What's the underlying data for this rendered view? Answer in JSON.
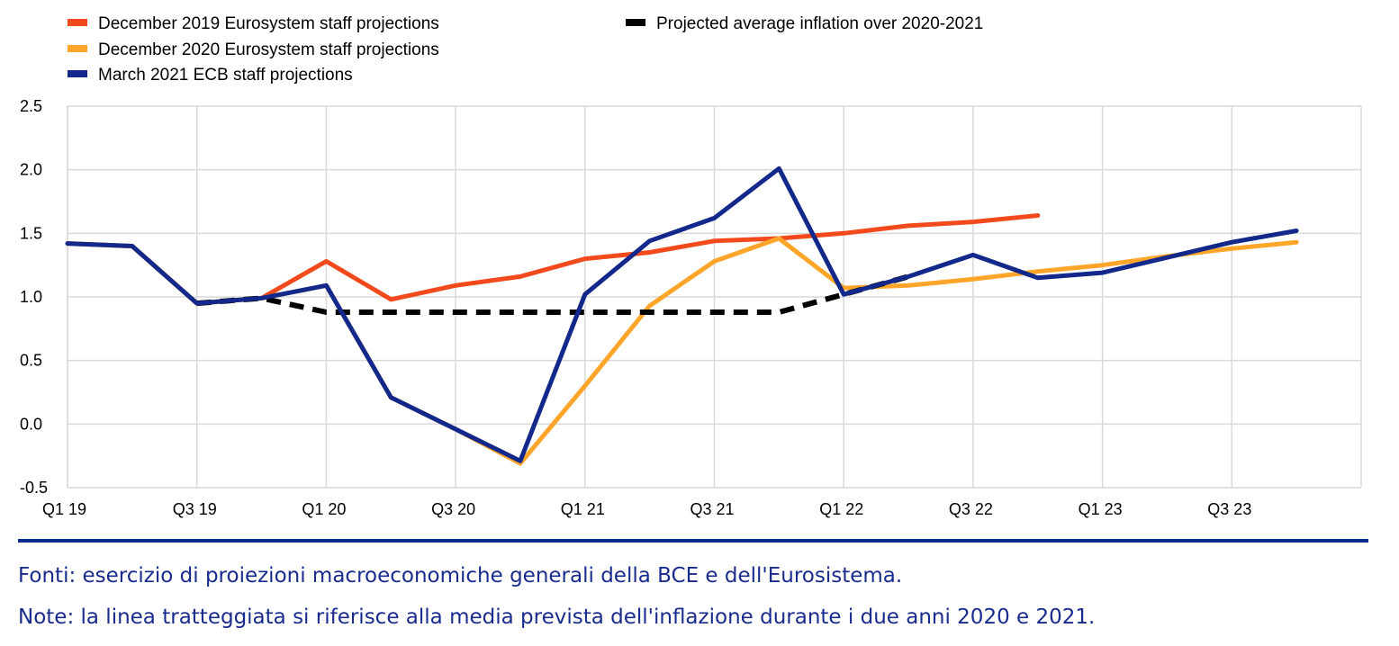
{
  "chart_data": {
    "type": "line",
    "title": "",
    "xlabel": "",
    "ylabel": "",
    "x": [
      "Q1 19",
      "Q2 19",
      "Q3 19",
      "Q4 19",
      "Q1 20",
      "Q2 20",
      "Q3 20",
      "Q4 20",
      "Q1 21",
      "Q2 21",
      "Q3 21",
      "Q4 21",
      "Q1 22",
      "Q2 22",
      "Q3 22",
      "Q4 22",
      "Q1 23",
      "Q2 23",
      "Q3 23",
      "Q4 23",
      "Q1 24"
    ],
    "x_tick_labels": [
      "Q1 19",
      "Q3 19",
      "Q1 20",
      "Q3 20",
      "Q1 21",
      "Q3 21",
      "Q1 22",
      "Q3 22",
      "Q1 23",
      "Q3 23"
    ],
    "ylim": [
      -0.5,
      2.5
    ],
    "y_ticks": [
      "-0.5",
      "0.0",
      "0.5",
      "1.0",
      "1.5",
      "2.0",
      "2.5"
    ],
    "grid": true,
    "legend_placement": "top",
    "series": [
      {
        "name": "December 2019 Eurosystem staff projections",
        "color": "#f24a1c",
        "dash": false,
        "values": [
          1.42,
          1.4,
          0.95,
          0.99,
          1.28,
          0.98,
          1.09,
          1.16,
          1.3,
          1.35,
          1.44,
          1.46,
          1.5,
          1.56,
          1.59,
          1.64,
          null,
          null,
          null,
          null,
          null
        ]
      },
      {
        "name": "December 2020 Eurosystem staff projections",
        "color": "#ffa52a",
        "dash": false,
        "values": [
          1.42,
          1.4,
          0.95,
          0.99,
          1.09,
          0.21,
          -0.04,
          -0.31,
          0.3,
          0.93,
          1.28,
          1.46,
          1.07,
          1.09,
          1.14,
          1.2,
          1.25,
          1.32,
          1.38,
          1.43,
          null
        ]
      },
      {
        "name": "March 2021 ECB staff projections",
        "color": "#12288a",
        "dash": false,
        "values": [
          1.42,
          1.4,
          0.95,
          0.99,
          1.09,
          0.21,
          -0.04,
          -0.29,
          1.02,
          1.44,
          1.62,
          2.01,
          1.02,
          1.16,
          1.33,
          1.15,
          1.19,
          1.31,
          1.43,
          1.52,
          null
        ]
      },
      {
        "name": "Projected average inflation over 2020-2021",
        "color": "#000000",
        "dash": true,
        "values": [
          null,
          null,
          0.95,
          0.99,
          0.88,
          0.88,
          0.88,
          0.88,
          0.88,
          0.88,
          0.88,
          0.88,
          1.02,
          1.16,
          null,
          null,
          null,
          null,
          null,
          null,
          null
        ]
      }
    ]
  },
  "footnotes": {
    "sources": "Fonti: esercizio di proiezioni macroeconomiche generali della BCE e dell'Eurosistema.",
    "notes": "Note: la linea tratteggiata si riferisce alla media prevista dell'inflazione durante i due anni 2020 e 2021."
  }
}
